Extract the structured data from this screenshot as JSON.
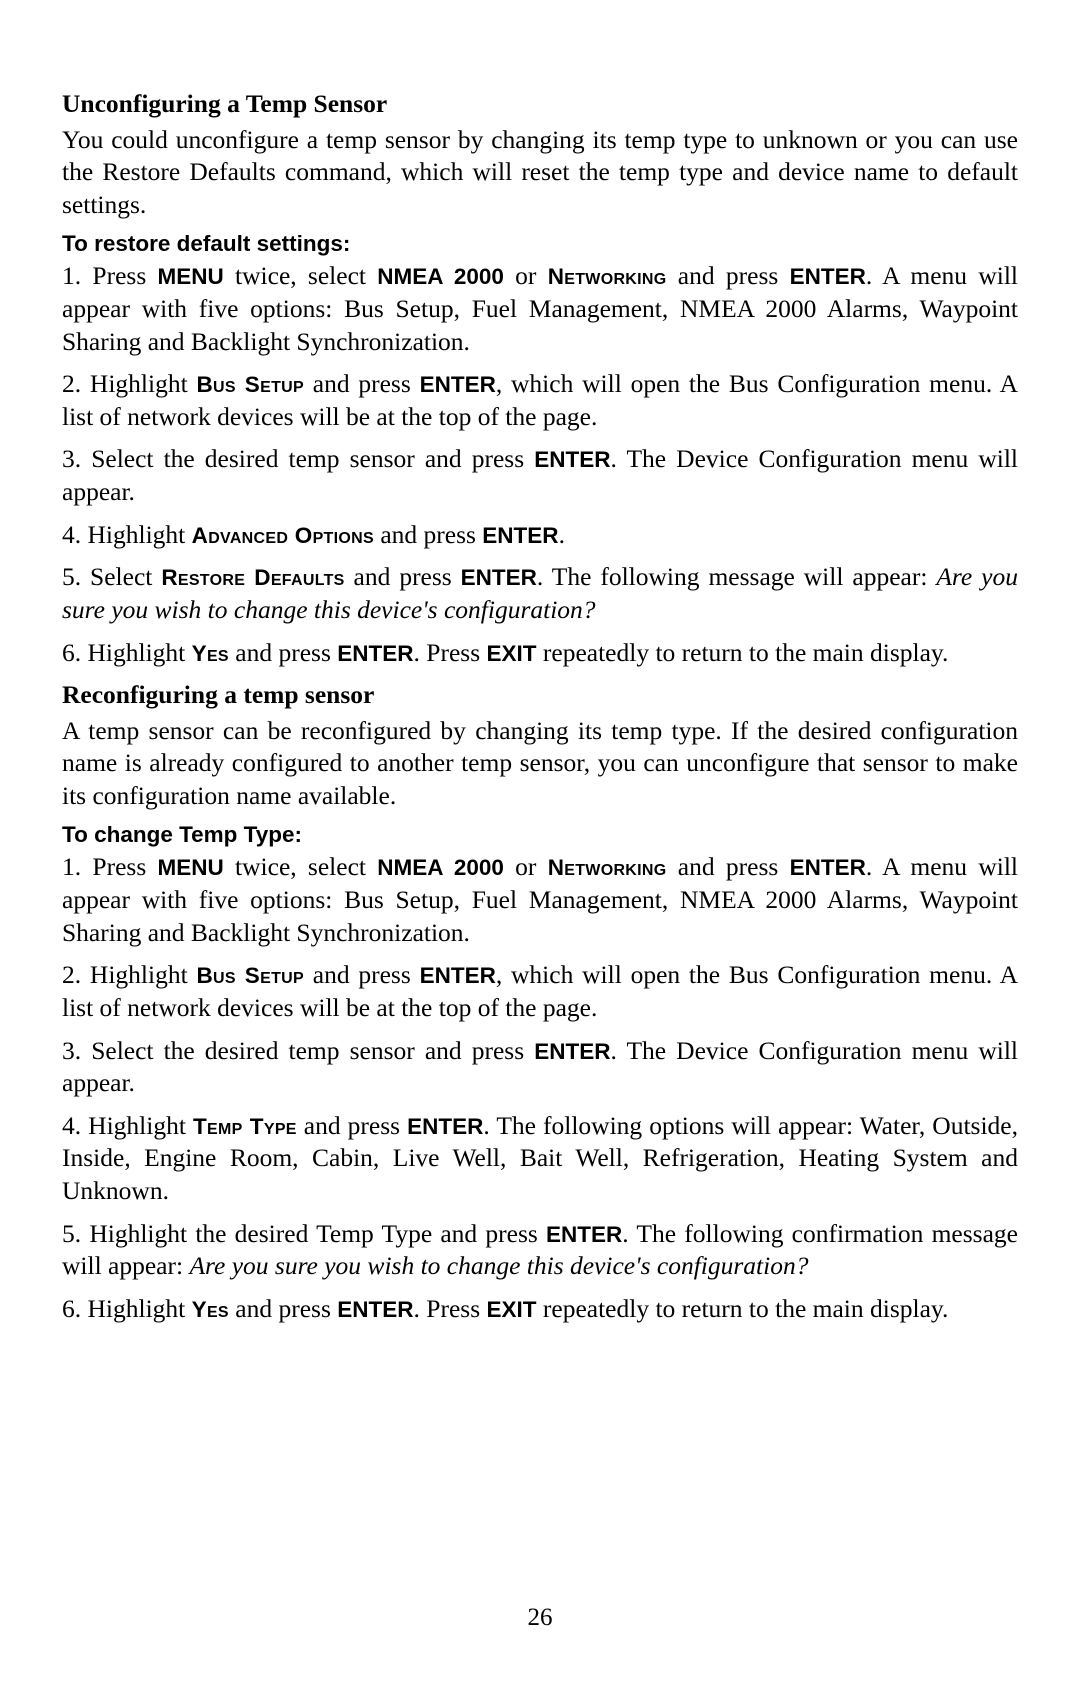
{
  "page_number": "26",
  "section1": {
    "heading": "Unconfiguring a Temp Sensor",
    "intro": "You could unconfigure a temp sensor by changing its temp type to unknown or you can use the Restore Defaults command, which will reset the temp type and device name to default settings.",
    "subheading": "To restore default settings:",
    "s1a": "1. Press ",
    "s1b": " twice, select ",
    "s1c": " or ",
    "s1d": " and press ",
    "s1e": ". A menu will appear with five options: Bus Setup, Fuel Management, NMEA 2000 Alarms, Waypoint Sharing and Backlight Synchronization.",
    "s2a": "2. Highlight ",
    "s2b": " and press ",
    "s2c": ", which will open the Bus Configuration menu. A list of network devices will be at the top of the page.",
    "s3a": "3. Select the desired temp sensor and press ",
    "s3b": ". The Device Configuration menu will appear.",
    "s4a": "4. Highlight ",
    "s4b": " and press ",
    "s4c": ".",
    "s5a": "5. Select ",
    "s5b": " and press ",
    "s5c": ". The following message will appear: ",
    "s5d": "Are you sure you wish to change this device's configuration?",
    "s6a": "6. Highlight ",
    "s6b": " and press ",
    "s6c": ". Press ",
    "s6d": " repeatedly to return to the main display."
  },
  "section2": {
    "heading": "Reconfiguring a temp sensor",
    "intro": "A temp sensor can be reconfigured by changing its temp type. If the desired configuration name is already configured to another temp sensor, you can unconfigure that sensor to make its configuration name available.",
    "subheading": "To change Temp Type:",
    "s1a": "1. Press ",
    "s1b": " twice, select ",
    "s1c": " or ",
    "s1d": " and press ",
    "s1e": ". A menu will appear with five options: Bus Setup, Fuel Management, NMEA 2000 Alarms, Waypoint Sharing and Backlight Synchronization.",
    "s2a": "2. Highlight ",
    "s2b": " and press ",
    "s2c": ", which will open the Bus Configuration menu. A list of network devices will be at the top of the page.",
    "s3a": "3. Select the desired temp sensor and press ",
    "s3b": ". The Device Configuration menu will appear.",
    "s4a": "4. Highlight ",
    "s4b": " and press ",
    "s4c": ". The following options will appear: Water, Outside, Inside, Engine Room, Cabin, Live Well, Bait Well, Refrigeration, Heating System and Unknown.",
    "s5a": "5. Highlight the desired Temp Type and press ",
    "s5b": ". The following confirmation message will appear: ",
    "s5c": "Are you sure you wish to change this device's configuration?",
    "s6a": "6. Highlight ",
    "s6b": " and press ",
    "s6c": ". Press ",
    "s6d": " repeatedly to return to the main display."
  },
  "kw": {
    "menu": "MENU",
    "nmea": "NMEA 2000",
    "networking": "Networking",
    "enter": "ENTER",
    "bus_setup": "Bus Setup",
    "advanced_options": "Advanced Options",
    "restore_defaults": "Restore Defaults",
    "yes": "Yes",
    "exit": "EXIT",
    "temp_type": "Temp Type"
  }
}
